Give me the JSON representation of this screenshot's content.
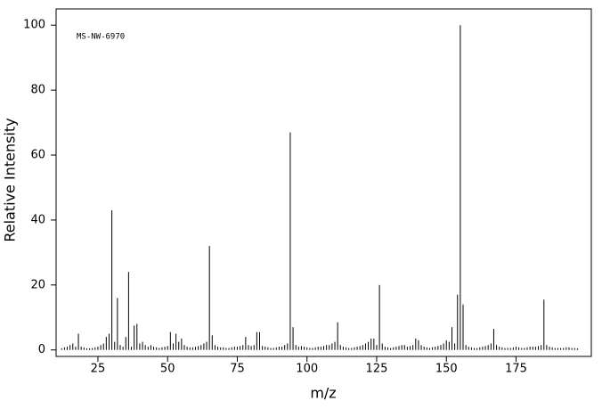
{
  "chart_data": {
    "type": "stem",
    "annotation": "MS-NW-6970",
    "x_label": "m/z",
    "y_label": "Relative Intensity",
    "color": "#000000",
    "xlim": [
      10,
      202
    ],
    "ylim": [
      -2,
      105
    ],
    "xticks": [
      25,
      50,
      75,
      100,
      125,
      150,
      175
    ],
    "yticks": [
      0,
      20,
      40,
      60,
      80,
      100
    ],
    "x": [
      12,
      13,
      14,
      15,
      16,
      17,
      18,
      19,
      20,
      21,
      22,
      23,
      24,
      25,
      26,
      27,
      28,
      29,
      30,
      31,
      32,
      33,
      34,
      35,
      36,
      37,
      38,
      39,
      40,
      41,
      42,
      43,
      44,
      45,
      46,
      47,
      48,
      49,
      50,
      51,
      52,
      53,
      54,
      55,
      56,
      57,
      58,
      59,
      60,
      61,
      62,
      63,
      64,
      65,
      66,
      67,
      68,
      69,
      70,
      71,
      72,
      73,
      74,
      75,
      76,
      77,
      78,
      79,
      80,
      81,
      82,
      83,
      84,
      85,
      86,
      87,
      88,
      89,
      90,
      91,
      92,
      93,
      94,
      95,
      96,
      97,
      98,
      99,
      100,
      101,
      102,
      103,
      104,
      105,
      106,
      107,
      108,
      109,
      110,
      111,
      112,
      113,
      114,
      115,
      116,
      117,
      118,
      119,
      120,
      121,
      122,
      123,
      124,
      125,
      126,
      127,
      128,
      129,
      130,
      131,
      132,
      133,
      134,
      135,
      136,
      137,
      138,
      139,
      140,
      141,
      142,
      143,
      144,
      145,
      146,
      147,
      148,
      149,
      150,
      151,
      152,
      153,
      154,
      155,
      156,
      157,
      158,
      159,
      160,
      161,
      162,
      163,
      164,
      165,
      166,
      167,
      168,
      169,
      170,
      171,
      172,
      173,
      174,
      175,
      176,
      177,
      178,
      179,
      180,
      181,
      182,
      183,
      184,
      185,
      186,
      187,
      188,
      189,
      190,
      191,
      192,
      193,
      194,
      195,
      196,
      197
    ],
    "values": [
      0.5,
      0.8,
      1,
      1.5,
      2,
      1,
      5,
      1,
      0.8,
      0.5,
      0.5,
      0.6,
      0.8,
      1,
      1.5,
      2,
      4,
      5,
      43,
      2.5,
      16,
      1.5,
      1,
      4,
      24,
      1,
      7.5,
      8,
      2,
      2.5,
      1.5,
      1,
      1.5,
      1,
      0.8,
      0.6,
      0.8,
      1,
      1.2,
      5.5,
      2,
      5,
      2.5,
      3.5,
      1.5,
      1,
      0.8,
      0.8,
      1,
      1.2,
      1.5,
      2,
      2.5,
      32,
      4.5,
      1.5,
      1,
      0.8,
      0.8,
      0.6,
      0.6,
      0.8,
      1,
      1,
      1.2,
      1.5,
      4,
      1.5,
      1.2,
      1.5,
      5.5,
      5.5,
      1.2,
      1,
      0.8,
      0.6,
      0.6,
      0.8,
      1,
      1,
      1.5,
      2,
      67,
      7,
      1.5,
      1,
      1.2,
      1,
      0.8,
      0.6,
      0.6,
      0.8,
      1,
      1,
      1.2,
      1.5,
      1.5,
      2,
      2.5,
      8.5,
      1.5,
      1,
      0.8,
      0.6,
      0.6,
      0.8,
      1,
      1.2,
      1.5,
      2,
      2.5,
      3.5,
      3.5,
      1.5,
      20,
      2,
      1,
      0.8,
      0.6,
      0.8,
      1,
      1.2,
      1.5,
      1.5,
      1,
      1.2,
      1.5,
      3.5,
      3,
      1.5,
      1,
      0.8,
      0.6,
      0.8,
      1,
      1.2,
      1.5,
      2,
      3,
      2.5,
      7,
      2,
      17,
      100,
      14,
      1.5,
      1,
      0.8,
      0.6,
      0.6,
      0.8,
      1,
      1.2,
      1.5,
      2,
      6.5,
      1.5,
      1,
      0.8,
      0.6,
      0.6,
      0.6,
      0.8,
      1,
      0.8,
      0.6,
      0.6,
      0.8,
      1,
      1,
      1,
      1.2,
      1.5,
      15.5,
      1.5,
      1,
      0.8,
      0.6,
      0.6,
      0.6,
      0.6,
      0.8,
      0.8,
      0.6,
      0.6,
      0.5
    ]
  }
}
